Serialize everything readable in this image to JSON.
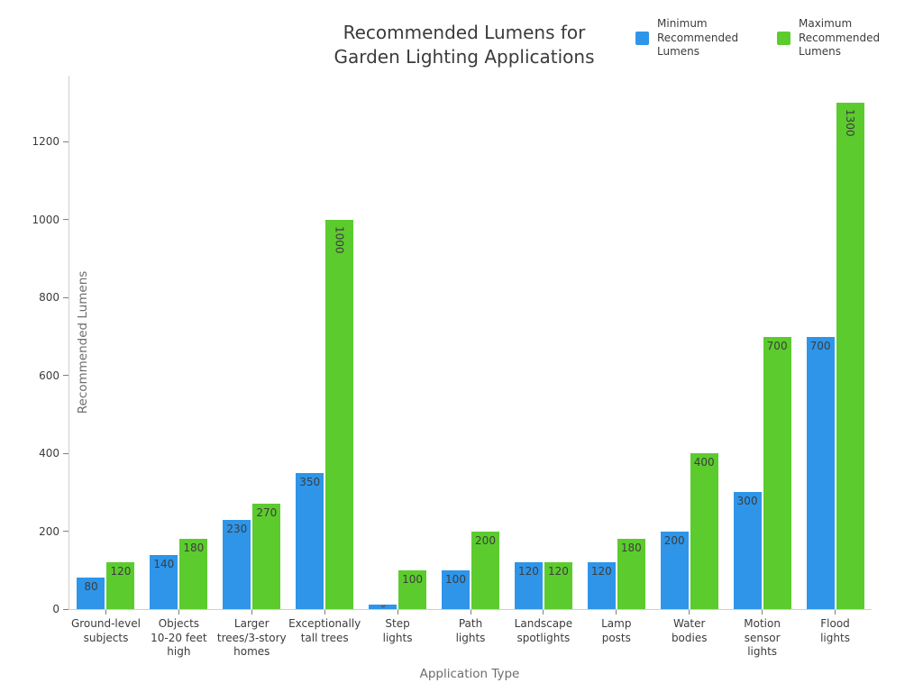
{
  "title": {
    "text": "Recommended Lumens for\nGarden Lighting Applications"
  },
  "legend": {
    "items": [
      {
        "label": "Minimum\nRecommended\nLumens",
        "color": "#2E95E9"
      },
      {
        "label": "Maximum\nRecommended\nLumens",
        "color": "#5CCB2E"
      }
    ]
  },
  "axes": {
    "xlabel": "Application Type",
    "ylabel": "Recommended Lumens"
  },
  "chart_data": {
    "type": "bar",
    "title": "Recommended Lumens for Garden Lighting Applications",
    "xlabel": "Application Type",
    "ylabel": "Recommended Lumens",
    "ylim": [
      0,
      1370
    ],
    "yticks": [
      0,
      200,
      400,
      600,
      800,
      1000,
      1200
    ],
    "grid": false,
    "legend_position": "top-right",
    "bar_label_color": "#3d3d3d",
    "categories": [
      "Ground-level\nsubjects",
      "Objects\n10-20 feet\nhigh",
      "Larger\ntrees/3-story\nhomes",
      "Exceptionally\ntall trees",
      "Step\nlights",
      "Path\nlights",
      "Landscape\nspotlights",
      "Lamp\nposts",
      "Water\nbodies",
      "Motion\nsensor\nlights",
      "Flood\nlights"
    ],
    "series": [
      {
        "name": "Minimum Recommended Lumens",
        "color": "#2E95E9",
        "values": [
          80,
          140,
          230,
          350,
          12,
          100,
          120,
          120,
          200,
          300,
          700
        ]
      },
      {
        "name": "Maximum Recommended Lumens",
        "color": "#5CCB2E",
        "values": [
          120,
          180,
          270,
          1000,
          100,
          200,
          120,
          180,
          400,
          700,
          1300
        ]
      }
    ]
  }
}
